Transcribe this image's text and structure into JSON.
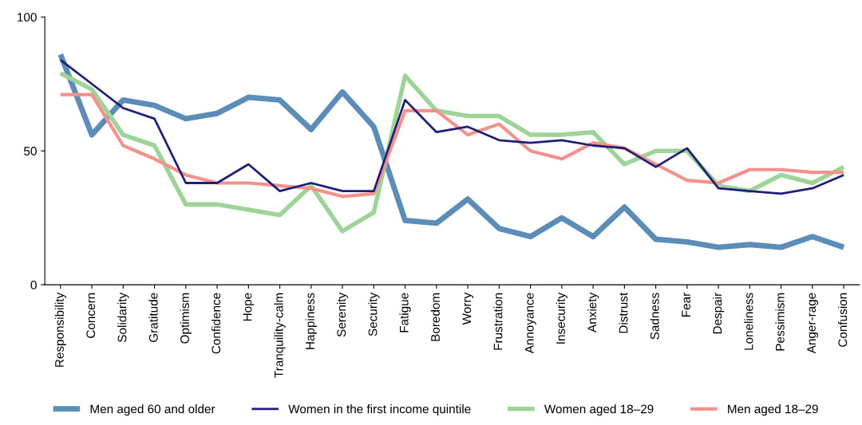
{
  "chart_data": {
    "type": "line",
    "categories": [
      "Responsibility",
      "Concern",
      "Solidarity",
      "Gratitude",
      "Optimism",
      "Confidence",
      "Hope",
      "Tranquility-calm",
      "Happiness",
      "Serenity",
      "Security",
      "Fatigue",
      "Boredom",
      "Worry",
      "Frustration",
      "Annoyance",
      "Insecurity",
      "Anxiety",
      "Distrust",
      "Sadness",
      "Fear",
      "Despair",
      "Loneliness",
      "Pessimism",
      "Anger-rage",
      "Confusion"
    ],
    "series": [
      {
        "name": "Men aged 60 and older",
        "color": "#5b8db8",
        "values": [
          86,
          56,
          69,
          67,
          62,
          64,
          70,
          69,
          58,
          72,
          59,
          24,
          23,
          32,
          21,
          18,
          25,
          18,
          29,
          17,
          16,
          14,
          15,
          14,
          18,
          14
        ]
      },
      {
        "name": "Women in the first income quintile",
        "color": "#1f1f7a",
        "values": [
          84,
          75,
          66,
          62,
          38,
          38,
          45,
          35,
          38,
          35,
          35,
          69,
          57,
          59,
          54,
          53,
          54,
          52,
          51,
          44,
          51,
          36,
          35,
          34,
          36,
          41
        ]
      },
      {
        "name": "Women aged 18–29",
        "color": "#9ed39a",
        "values": [
          79,
          73,
          56,
          52,
          30,
          30,
          28,
          26,
          37,
          20,
          27,
          78,
          65,
          63,
          63,
          56,
          56,
          57,
          45,
          50,
          50,
          37,
          35,
          41,
          38,
          44
        ]
      },
      {
        "name": "Men aged 18–29",
        "color": "#f3918a",
        "values": [
          71,
          71,
          52,
          47,
          41,
          38,
          38,
          37,
          36,
          33,
          34,
          65,
          65,
          56,
          60,
          50,
          47,
          53,
          51,
          45,
          39,
          38,
          43,
          43,
          42,
          42
        ]
      }
    ],
    "ylim": [
      0,
      100
    ],
    "yticks": [
      0,
      50,
      100
    ],
    "grid": false,
    "legend": "bottom",
    "marker": "none",
    "line_style": "solid"
  }
}
